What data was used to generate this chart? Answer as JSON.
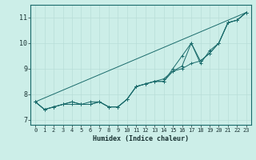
{
  "xlabel": "Humidex (Indice chaleur)",
  "ylabel": "",
  "background_color": "#cceee8",
  "grid_color": "#b8ddd8",
  "line_color": "#1a6b6b",
  "xlim": [
    -0.5,
    23.5
  ],
  "ylim": [
    6.8,
    11.5
  ],
  "yticks": [
    7,
    8,
    9,
    10,
    11
  ],
  "xticks": [
    0,
    1,
    2,
    3,
    4,
    5,
    6,
    7,
    8,
    9,
    10,
    11,
    12,
    13,
    14,
    15,
    16,
    17,
    18,
    19,
    20,
    21,
    22,
    23
  ],
  "series1_x": [
    0,
    1,
    2,
    3,
    4,
    5,
    6,
    7,
    8,
    9,
    10,
    11,
    12,
    13,
    14,
    15,
    16,
    17,
    18,
    19,
    20,
    21,
    22,
    23
  ],
  "series1_y": [
    7.7,
    7.4,
    7.5,
    7.6,
    7.7,
    7.6,
    7.6,
    7.7,
    7.5,
    7.5,
    7.8,
    8.3,
    8.4,
    8.5,
    8.5,
    9.0,
    9.5,
    10.0,
    9.3,
    9.6,
    10.0,
    10.8,
    10.9,
    11.2
  ],
  "series2_x": [
    0,
    1,
    2,
    3,
    4,
    5,
    6,
    7,
    8,
    9,
    10,
    11,
    12,
    13,
    14,
    15,
    16,
    17,
    18,
    19,
    20,
    21,
    22,
    23
  ],
  "series2_y": [
    7.7,
    7.4,
    7.5,
    7.6,
    7.7,
    7.6,
    7.7,
    7.7,
    7.5,
    7.5,
    7.8,
    8.3,
    8.4,
    8.5,
    8.6,
    8.9,
    9.1,
    10.0,
    9.2,
    9.7,
    10.0,
    10.8,
    10.9,
    11.2
  ],
  "series3_x": [
    0,
    23
  ],
  "series3_y": [
    7.7,
    11.2
  ],
  "series4_x": [
    0,
    1,
    2,
    3,
    4,
    5,
    6,
    7,
    8,
    9,
    10,
    11,
    12,
    13,
    14,
    15,
    16,
    17,
    18,
    19,
    20,
    21,
    22,
    23
  ],
  "series4_y": [
    7.7,
    7.4,
    7.5,
    7.6,
    7.6,
    7.6,
    7.6,
    7.7,
    7.5,
    7.5,
    7.8,
    8.3,
    8.4,
    8.5,
    8.5,
    8.9,
    9.0,
    9.2,
    9.3,
    9.6,
    10.0,
    10.8,
    10.9,
    11.2
  ]
}
